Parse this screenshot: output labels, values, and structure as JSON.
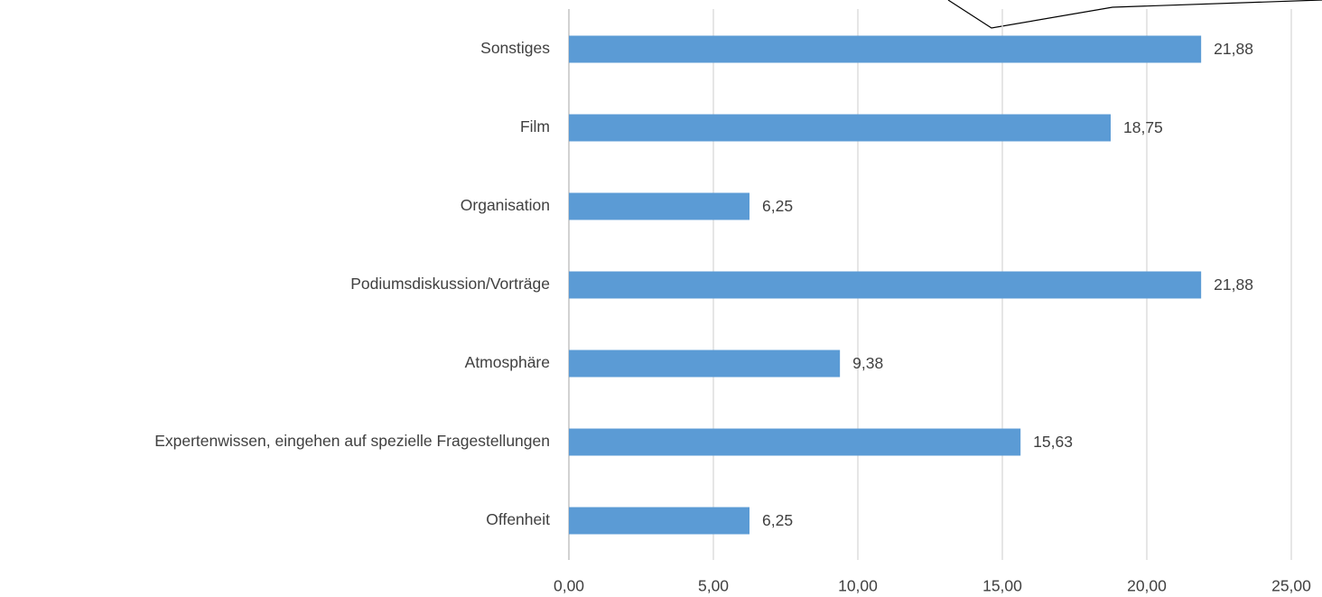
{
  "chart_data": {
    "type": "bar",
    "orientation": "horizontal",
    "categories": [
      "Sonstiges",
      "Film",
      "Organisation",
      "Podiumsdiskussion/Vorträge",
      "Atmosphäre",
      "Expertenwissen, eingehen auf spezielle Fragestellungen",
      "Offenheit"
    ],
    "values": [
      21.88,
      18.75,
      6.25,
      21.88,
      9.38,
      15.63,
      6.25
    ],
    "value_labels": [
      "21,88",
      "18,75",
      "6,25",
      "21,88",
      "9,38",
      "15,63",
      "6,25"
    ],
    "color": "#5b9bd5",
    "xlim": [
      0,
      25
    ],
    "xticks": [
      {
        "value": 0,
        "label": "0,00"
      },
      {
        "value": 5,
        "label": "5,00"
      },
      {
        "value": 10,
        "label": "10,00"
      },
      {
        "value": 15,
        "label": "15,00"
      },
      {
        "value": 20,
        "label": "20,00"
      },
      {
        "value": 25,
        "label": "25,00"
      }
    ],
    "grid": true
  }
}
